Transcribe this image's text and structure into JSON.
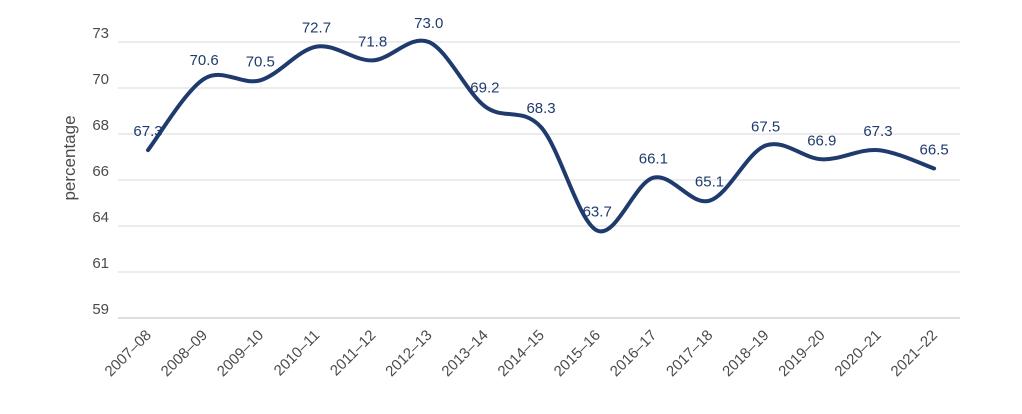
{
  "chart_data": {
    "type": "line",
    "title": "",
    "xlabel": "",
    "ylabel": "percentage",
    "categories": [
      "2007–08",
      "2008–09",
      "2009–10",
      "2010–11",
      "2011–12",
      "2012–13",
      "2013–14",
      "2014–15",
      "2015–16",
      "2016–17",
      "2017–18",
      "2018–19",
      "2019–20",
      "2020–21",
      "2021–22"
    ],
    "series": [
      {
        "values": [
          67.3,
          70.6,
          70.5,
          72.7,
          71.8,
          73.0,
          69.2,
          68.3,
          63.7,
          66.1,
          65.1,
          67.5,
          66.9,
          67.3,
          66.5
        ]
      }
    ],
    "y_tick_labels": [
      "73",
      "70",
      "68",
      "66",
      "64",
      "61",
      "59"
    ],
    "grid": true,
    "legend": "none",
    "line_color": "#1f3b6e"
  }
}
